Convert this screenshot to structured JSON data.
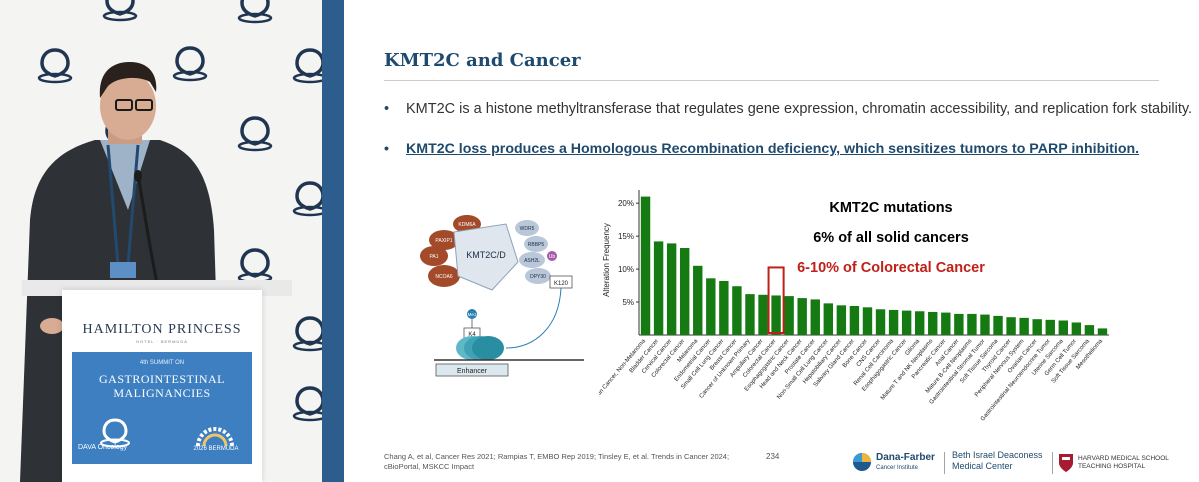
{
  "colors": {
    "title": "#1e4a6e",
    "bar": "#157a12",
    "highlight_box": "#c02018",
    "panel_blue": "#3d7fc0",
    "divider": "#2c5d8c"
  },
  "speaker_panel": {
    "podium_brand": "HAMILTON PRINCESS",
    "podium_brand_sub": "HOTEL · BERMUDA",
    "summit_edition": "4th SUMMIT ON",
    "summit_title_1": "GASTROINTESTINAL",
    "summit_title_2": "MALIGNANCIES",
    "dava_logo_text": "DAVA Oncology",
    "bermuda_logo_text": "2026 BERMUDA",
    "icons": [
      "dava-pattern-icon",
      "microphone-icon"
    ]
  },
  "slide": {
    "title": "KMT2C and Cancer",
    "bullets": [
      {
        "marker": "•",
        "text": "KMT2C is a histone methyltransferase that regulates gene expression, chromatin accessibility, and replication fork stability."
      },
      {
        "marker": "•",
        "text": "KMT2C loss produces a Homologous Recombination deficiency, which sensitizes tumors to PARP inhibition."
      }
    ],
    "diagram": {
      "complex_label": "KMT2C/D",
      "subunits": [
        "KDM6A",
        "PAXIP1",
        "PA1",
        "NCOA6",
        "WDR5",
        "RBBP5",
        "ASH2L",
        "DPY30"
      ],
      "marks": [
        "K120",
        "K4",
        "Me1",
        "Ub"
      ],
      "enhancer_label": "Enhancer"
    },
    "footer_refs": [
      "Chang A, et al, Cancer Res 2021; Rampias T, EMBO Rep 2019; Tinsley E, et al. Trends in Cancer 2024;",
      "cBioPortal, MSKCC Impact"
    ],
    "page_number": "234",
    "logos": {
      "dfci_name": "Dana-Farber",
      "dfci_sub": "Cancer Institute",
      "bidmc_line1": "Beth Israel Deaconess",
      "bidmc_line2": "Medical Center",
      "harvard_line1": "HARVARD MEDICAL SCHOOL",
      "harvard_line2": "TEACHING HOSPITAL"
    }
  },
  "chart_data": {
    "type": "bar",
    "title": "",
    "xlabel": "",
    "ylabel": "Alteration Frequency",
    "ylim": [
      0,
      22
    ],
    "yticks": [
      5,
      10,
      15,
      20
    ],
    "ytick_labels": [
      "5%",
      "10%",
      "15%",
      "20%"
    ],
    "grid": false,
    "annotations": [
      {
        "text": "KMT2C mutations",
        "color": "#000000"
      },
      {
        "text": "6% of all solid cancers",
        "color": "#000000"
      },
      {
        "text": "6-10% of Colorectal Cancer",
        "color": "#c02018"
      }
    ],
    "highlight_category": "Colorectal Cancer",
    "categories": [
      "Skin Cancer, Non-Melanoma",
      "Bladder Cancer",
      "Cervical Cancer",
      "Colorectal Cancer",
      "Melanoma",
      "Endometrial Cancer",
      "Small Cell Lung Cancer",
      "Breast Cancer",
      "Cancer of Unknown Primary",
      "Ampullary Cancer",
      "Colorectal Cancer",
      "Esophagogastric Cancer",
      "Head and Neck Cancer",
      "Prostate Cancer",
      "Non-Small Cell Lung Cancer",
      "Hepatobiliary Cancer",
      "Salivary Gland Cancer",
      "Bone Cancer",
      "CNS Cancer",
      "Renal Cell Carcinoma",
      "Esophagogastric Cancer",
      "Glioma",
      "Mature T and NK Neoplasms",
      "Pancreatic Cancer",
      "Anal Cancer",
      "Mature B-Cell Neoplasms",
      "Gastrointestinal Stromal Tumor",
      "Soft Tissue Sarcoma",
      "Thyroid Cancer",
      "Peripheral Nervous System",
      "Ovarian Cancer",
      "Gastrointestinal Neuroendocrine Tumor",
      "Uterine Sarcoma",
      "Germ Cell Tumor",
      "Soft Tissue Sarcoma",
      "Mesothelioma"
    ],
    "tick_labels": [
      "Skin Cancer, Non-Melanoma",
      "Bladder Cancer",
      "Cervical Cancer",
      "Colorectal Cancer",
      "Melanoma",
      "Endometrial Cancer",
      "Small Cell Lung Cancer",
      "Breast Cancer",
      "Cancer of Unknown Primary",
      "Ampullary Cancer",
      "Colorectal Cancer",
      "Esophagogastric Cancer",
      "Head and Neck Cancer",
      "Prostate Cancer",
      "Non-Small Cell Lung Cancer",
      "Hepatobiliary Cancer",
      "Salivary Gland Cancer",
      "Bone Cancer",
      "CNS Cancer",
      "Renal Cell Carcinoma",
      "Esophagogastric Cancer",
      "Glioma",
      "Mature T and NK Neoplasms",
      "Pancreatic Cancer",
      "Anal Cancer",
      "Mature B-Cell Neoplasms",
      "Gastrointestinal Stromal Tumor",
      "Soft Tissue Sarcoma",
      "Thyroid Cancer",
      "Peripheral Nervous System",
      "Ovarian Cancer",
      "Gastrointestinal Neuroendocrine Tumor",
      "Uterine Sarcoma",
      "Germ Cell Tumor",
      "Soft Tissue Sarcoma",
      "Mesothelioma"
    ],
    "values": [
      21,
      14.2,
      13.9,
      13.2,
      10.5,
      8.6,
      8.2,
      7.4,
      6.2,
      6.1,
      6.0,
      5.9,
      5.6,
      5.4,
      4.8,
      4.5,
      4.4,
      4.2,
      3.9,
      3.8,
      3.7,
      3.6,
      3.5,
      3.4,
      3.2,
      3.2,
      3.1,
      2.9,
      2.7,
      2.6,
      2.4,
      2.3,
      2.2,
      1.9,
      1.5,
      1.0
    ]
  }
}
